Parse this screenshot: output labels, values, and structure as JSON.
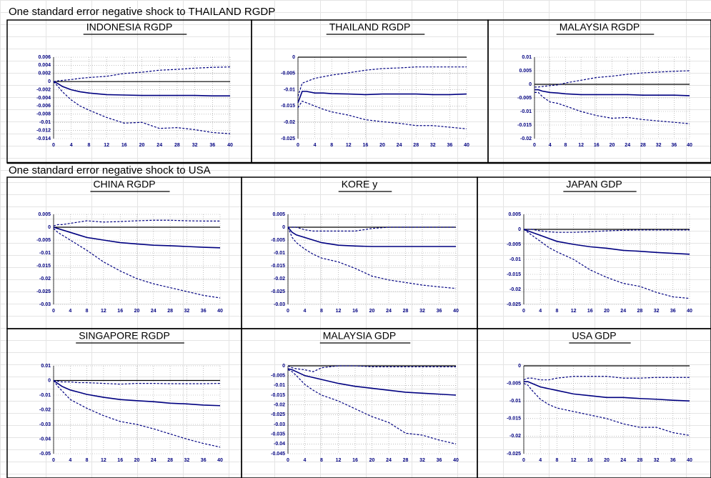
{
  "sections": [
    {
      "title": "One standard error negative shock to THAILAND RGDP"
    },
    {
      "title": "One standard error negative shock to USA"
    }
  ],
  "chart_data": [
    {
      "type": "line",
      "title": "INDONESIA RGDP",
      "x": [
        0,
        1,
        2,
        4,
        6,
        8,
        12,
        16,
        20,
        24,
        28,
        32,
        36,
        40
      ],
      "xlim": [
        0,
        40
      ],
      "xticks": [
        0,
        4,
        8,
        12,
        16,
        20,
        24,
        28,
        32,
        36,
        40
      ],
      "ylim": [
        -0.014,
        0.006
      ],
      "yticks": [
        0.006,
        0.004,
        0.002,
        0,
        -0.002,
        -0.004,
        -0.006,
        -0.008,
        -0.01,
        -0.012,
        -0.014
      ],
      "grid": true,
      "series": [
        {
          "color": "#000080",
          "line_style": "dashed",
          "values": [
            0,
            0.0002,
            0.0003,
            0.0005,
            0.0008,
            0.001,
            0.0013,
            0.002,
            0.0023,
            0.0028,
            0.003,
            0.0033,
            0.0035,
            0.0036
          ]
        },
        {
          "color": "#000080",
          "line_style": "solid",
          "values": [
            0,
            -0.0005,
            -0.0012,
            -0.002,
            -0.0025,
            -0.0028,
            -0.0032,
            -0.0033,
            -0.0034,
            -0.0034,
            -0.0034,
            -0.0034,
            -0.0035,
            -0.0035
          ]
        },
        {
          "color": "#000080",
          "line_style": "dashed",
          "values": [
            0,
            -0.0012,
            -0.0025,
            -0.0045,
            -0.006,
            -0.007,
            -0.0088,
            -0.0102,
            -0.01,
            -0.0115,
            -0.0113,
            -0.0118,
            -0.0125,
            -0.0128
          ]
        }
      ]
    },
    {
      "type": "line",
      "title": "THAILAND RGDP",
      "x": [
        0,
        1,
        2,
        4,
        6,
        8,
        12,
        16,
        20,
        24,
        28,
        32,
        36,
        40
      ],
      "xlim": [
        0,
        40
      ],
      "xticks": [
        0,
        4,
        8,
        12,
        16,
        20,
        24,
        28,
        32,
        36,
        40
      ],
      "ylim": [
        -0.025,
        0
      ],
      "yticks": [
        0,
        -0.005,
        -0.01,
        -0.015,
        -0.02,
        -0.025
      ],
      "grid": true,
      "series": [
        {
          "color": "#000080",
          "line_style": "dashed",
          "values": [
            -0.012,
            -0.008,
            -0.0075,
            -0.0065,
            -0.006,
            -0.0055,
            -0.0048,
            -0.004,
            -0.0035,
            -0.0033,
            -0.003,
            -0.003,
            -0.003,
            -0.003
          ]
        },
        {
          "color": "#000080",
          "line_style": "solid",
          "values": [
            -0.014,
            -0.0105,
            -0.0105,
            -0.011,
            -0.011,
            -0.0112,
            -0.0113,
            -0.0115,
            -0.0113,
            -0.0113,
            -0.0113,
            -0.0115,
            -0.0115,
            -0.0113
          ]
        },
        {
          "color": "#000080",
          "line_style": "dashed",
          "values": [
            -0.0155,
            -0.0135,
            -0.014,
            -0.015,
            -0.016,
            -0.0168,
            -0.0178,
            -0.0192,
            -0.0198,
            -0.0203,
            -0.021,
            -0.021,
            -0.0215,
            -0.022
          ]
        }
      ]
    },
    {
      "type": "line",
      "title": "MALAYSIA RGDP",
      "x": [
        0,
        1,
        2,
        4,
        6,
        8,
        12,
        16,
        20,
        24,
        28,
        32,
        36,
        40
      ],
      "xlim": [
        0,
        40
      ],
      "xticks": [
        0,
        4,
        8,
        12,
        16,
        20,
        24,
        28,
        32,
        36,
        40
      ],
      "ylim": [
        -0.02,
        0.01
      ],
      "yticks": [
        0.01,
        0.005,
        0,
        -0.005,
        -0.01,
        -0.015,
        -0.02
      ],
      "grid": true,
      "series": [
        {
          "color": "#000080",
          "line_style": "dashed",
          "values": [
            -0.001,
            -0.001,
            -0.0008,
            -0.0005,
            -0.0002,
            0.0005,
            0.0015,
            0.0025,
            0.003,
            0.0037,
            0.0042,
            0.0045,
            0.0048,
            0.005
          ]
        },
        {
          "color": "#000080",
          "line_style": "solid",
          "values": [
            -0.002,
            -0.002,
            -0.0025,
            -0.003,
            -0.0032,
            -0.0035,
            -0.0038,
            -0.0038,
            -0.0038,
            -0.0038,
            -0.004,
            -0.004,
            -0.004,
            -0.0042
          ]
        },
        {
          "color": "#000080",
          "line_style": "dashed",
          "values": [
            -0.003,
            -0.003,
            -0.0045,
            -0.0065,
            -0.007,
            -0.008,
            -0.01,
            -0.0115,
            -0.0125,
            -0.0122,
            -0.013,
            -0.0135,
            -0.014,
            -0.0145
          ]
        }
      ]
    },
    {
      "type": "line",
      "title": "CHINA RGDP",
      "x": [
        0,
        1,
        2,
        4,
        6,
        8,
        12,
        16,
        20,
        24,
        28,
        32,
        36,
        40
      ],
      "xlim": [
        0,
        40
      ],
      "xticks": [
        0,
        4,
        8,
        12,
        16,
        20,
        24,
        28,
        32,
        36,
        40
      ],
      "ylim": [
        -0.03,
        0.005
      ],
      "yticks": [
        0.005,
        0,
        -0.005,
        -0.01,
        -0.015,
        -0.02,
        -0.025,
        -0.03
      ],
      "grid": true,
      "series": [
        {
          "color": "#000080",
          "line_style": "dashed",
          "values": [
            0.0005,
            0.001,
            0.001,
            0.0015,
            0.002,
            0.0025,
            0.002,
            0.0022,
            0.0025,
            0.0027,
            0.0027,
            0.0025,
            0.0024,
            0.0024
          ]
        },
        {
          "color": "#000080",
          "line_style": "solid",
          "values": [
            0,
            -0.0005,
            -0.001,
            -0.002,
            -0.003,
            -0.004,
            -0.005,
            -0.006,
            -0.0065,
            -0.007,
            -0.0072,
            -0.0075,
            -0.0078,
            -0.008
          ]
        },
        {
          "color": "#000080",
          "line_style": "dashed",
          "values": [
            -0.0005,
            -0.002,
            -0.003,
            -0.005,
            -0.007,
            -0.009,
            -0.0135,
            -0.017,
            -0.02,
            -0.022,
            -0.0235,
            -0.025,
            -0.0265,
            -0.0275
          ]
        }
      ]
    },
    {
      "type": "line",
      "title": "KORE y",
      "x": [
        0,
        1,
        2,
        4,
        6,
        8,
        12,
        16,
        20,
        24,
        28,
        32,
        36,
        40
      ],
      "xlim": [
        0,
        40
      ],
      "xticks": [
        0,
        4,
        8,
        12,
        16,
        20,
        24,
        28,
        32,
        36,
        40
      ],
      "ylim": [
        -0.03,
        0.005
      ],
      "yticks": [
        0.005,
        0,
        -0.005,
        -0.01,
        -0.015,
        -0.02,
        -0.025,
        -0.03
      ],
      "grid": true,
      "series": [
        {
          "color": "#000080",
          "line_style": "dashed",
          "values": [
            0,
            0,
            0,
            -0.001,
            -0.0015,
            -0.0015,
            -0.0015,
            -0.0015,
            -0.0005,
            0,
            0,
            0,
            0,
            0
          ]
        },
        {
          "color": "#000080",
          "line_style": "solid",
          "values": [
            0,
            -0.002,
            -0.003,
            -0.004,
            -0.005,
            -0.006,
            -0.007,
            -0.0073,
            -0.0075,
            -0.0075,
            -0.0075,
            -0.0075,
            -0.0075,
            -0.0075
          ]
        },
        {
          "color": "#000080",
          "line_style": "dashed",
          "values": [
            0,
            -0.004,
            -0.006,
            -0.0085,
            -0.0105,
            -0.012,
            -0.0135,
            -0.016,
            -0.019,
            -0.0205,
            -0.0215,
            -0.0225,
            -0.0232,
            -0.0238
          ]
        }
      ]
    },
    {
      "type": "line",
      "title": "JAPAN GDP",
      "x": [
        0,
        1,
        2,
        4,
        6,
        8,
        12,
        16,
        20,
        24,
        28,
        32,
        36,
        40
      ],
      "xlim": [
        0,
        40
      ],
      "xticks": [
        0,
        4,
        8,
        12,
        16,
        20,
        24,
        28,
        32,
        36,
        40
      ],
      "ylim": [
        -0.025,
        0.005
      ],
      "yticks": [
        0.005,
        0,
        -0.005,
        -0.01,
        -0.015,
        -0.02,
        -0.025
      ],
      "grid": true,
      "series": [
        {
          "color": "#000080",
          "line_style": "dashed",
          "values": [
            0,
            0,
            0,
            -0.0005,
            -0.0008,
            -0.001,
            -0.001,
            -0.0008,
            -0.0005,
            -0.0003,
            -0.0002,
            -0.0002,
            -0.0002,
            -0.0002
          ]
        },
        {
          "color": "#000080",
          "line_style": "solid",
          "values": [
            0,
            -0.0005,
            -0.001,
            -0.002,
            -0.003,
            -0.004,
            -0.005,
            -0.0058,
            -0.0063,
            -0.007,
            -0.0073,
            -0.0077,
            -0.008,
            -0.0083
          ]
        },
        {
          "color": "#000080",
          "line_style": "dashed",
          "values": [
            0,
            -0.001,
            -0.002,
            -0.004,
            -0.006,
            -0.0075,
            -0.01,
            -0.0135,
            -0.016,
            -0.018,
            -0.019,
            -0.021,
            -0.0225,
            -0.023
          ]
        }
      ]
    },
    {
      "type": "line",
      "title": "SINGAPORE RGDP",
      "x": [
        0,
        1,
        2,
        4,
        6,
        8,
        12,
        16,
        20,
        24,
        28,
        32,
        36,
        40
      ],
      "xlim": [
        0,
        40
      ],
      "xticks": [
        0,
        4,
        8,
        12,
        16,
        20,
        24,
        28,
        32,
        36,
        40
      ],
      "ylim": [
        -0.05,
        0.01
      ],
      "yticks": [
        0.01,
        0,
        -0.01,
        -0.02,
        -0.03,
        -0.04,
        -0.05
      ],
      "grid": true,
      "series": [
        {
          "color": "#000080",
          "line_style": "dashed",
          "values": [
            0,
            -0.0005,
            -0.001,
            -0.001,
            -0.0015,
            -0.0015,
            -0.002,
            -0.0025,
            -0.002,
            -0.002,
            -0.0022,
            -0.0022,
            -0.0022,
            -0.002
          ]
        },
        {
          "color": "#000080",
          "line_style": "solid",
          "values": [
            0,
            -0.002,
            -0.004,
            -0.0065,
            -0.008,
            -0.0095,
            -0.0115,
            -0.013,
            -0.0138,
            -0.0145,
            -0.0155,
            -0.016,
            -0.0168,
            -0.0172
          ]
        },
        {
          "color": "#000080",
          "line_style": "dashed",
          "values": [
            0,
            -0.004,
            -0.007,
            -0.013,
            -0.016,
            -0.019,
            -0.024,
            -0.028,
            -0.03,
            -0.033,
            -0.0365,
            -0.04,
            -0.043,
            -0.0455
          ]
        }
      ]
    },
    {
      "type": "line",
      "title": "MALAYSIA GDP",
      "x": [
        0,
        1,
        2,
        4,
        6,
        8,
        12,
        16,
        20,
        24,
        28,
        32,
        36,
        40
      ],
      "xlim": [
        0,
        40
      ],
      "xticks": [
        0,
        4,
        8,
        12,
        16,
        20,
        24,
        28,
        32,
        36,
        40
      ],
      "ylim": [
        -0.045,
        0
      ],
      "yticks": [
        0,
        -0.005,
        -0.01,
        -0.015,
        -0.02,
        -0.025,
        -0.03,
        -0.035,
        -0.04,
        -0.045
      ],
      "grid": true,
      "series": [
        {
          "color": "#000080",
          "line_style": "dashed",
          "values": [
            0,
            -0.001,
            -0.0015,
            -0.002,
            -0.003,
            -0.001,
            0,
            0,
            -0.0005,
            -0.0005,
            -0.0005,
            -0.0005,
            -0.0005,
            -0.0005
          ]
        },
        {
          "color": "#000080",
          "line_style": "solid",
          "values": [
            -0.0015,
            -0.002,
            -0.003,
            -0.005,
            -0.006,
            -0.007,
            -0.009,
            -0.0105,
            -0.0115,
            -0.0125,
            -0.0135,
            -0.014,
            -0.0145,
            -0.015
          ]
        },
        {
          "color": "#000080",
          "line_style": "dashed",
          "values": [
            -0.002,
            -0.003,
            -0.005,
            -0.0095,
            -0.0125,
            -0.015,
            -0.018,
            -0.022,
            -0.026,
            -0.029,
            -0.0345,
            -0.0355,
            -0.038,
            -0.04
          ]
        }
      ]
    },
    {
      "type": "line",
      "title": "USA GDP",
      "x": [
        0,
        1,
        2,
        4,
        6,
        8,
        12,
        16,
        20,
        24,
        28,
        32,
        36,
        40
      ],
      "xlim": [
        0,
        40
      ],
      "xticks": [
        0,
        4,
        8,
        12,
        16,
        20,
        24,
        28,
        32,
        36,
        40
      ],
      "ylim": [
        -0.025,
        0
      ],
      "yticks": [
        0,
        -0.005,
        -0.01,
        -0.015,
        -0.02,
        -0.025
      ],
      "grid": true,
      "series": [
        {
          "color": "#000080",
          "line_style": "dashed",
          "values": [
            -0.004,
            -0.0035,
            -0.0035,
            -0.004,
            -0.004,
            -0.0035,
            -0.003,
            -0.003,
            -0.003,
            -0.0035,
            -0.0035,
            -0.0033,
            -0.0033,
            -0.0033
          ]
        },
        {
          "color": "#000080",
          "line_style": "solid",
          "values": [
            -0.0045,
            -0.0045,
            -0.005,
            -0.006,
            -0.0065,
            -0.007,
            -0.008,
            -0.0085,
            -0.009,
            -0.009,
            -0.0093,
            -0.0095,
            -0.0098,
            -0.01
          ]
        },
        {
          "color": "#000080",
          "line_style": "dashed",
          "values": [
            -0.005,
            -0.0055,
            -0.007,
            -0.0095,
            -0.011,
            -0.012,
            -0.013,
            -0.014,
            -0.015,
            -0.0165,
            -0.0175,
            -0.0175,
            -0.019,
            -0.0198
          ]
        }
      ]
    }
  ]
}
